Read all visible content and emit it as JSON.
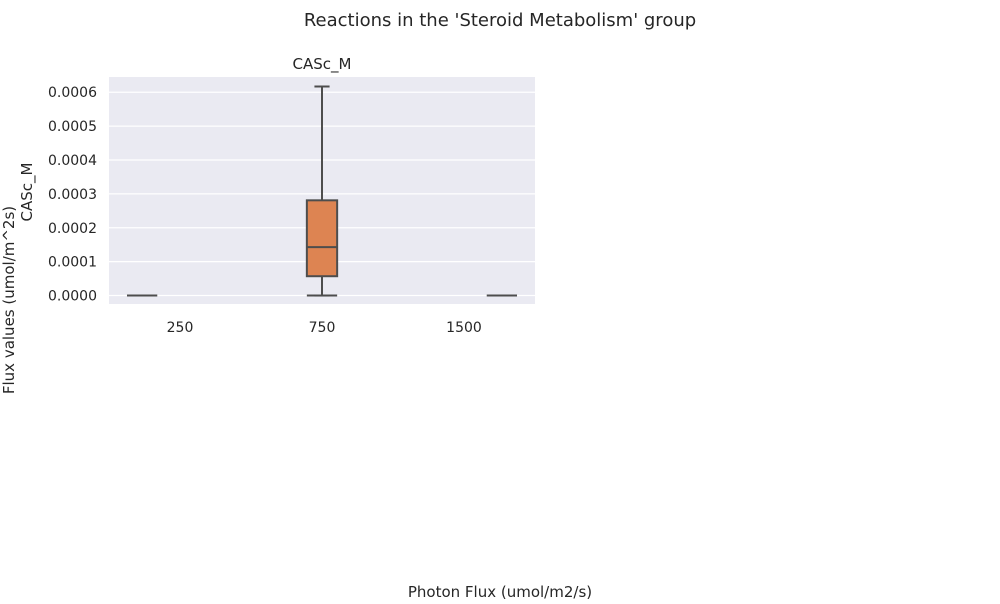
{
  "figure": {
    "suptitle": "Reactions in the 'Steroid Metabolism' group",
    "ylabel": "Flux values (umol/m^2s)",
    "xlabel": "Photon Flux (umol/m2/s)"
  },
  "chart_data": {
    "type": "box",
    "title": "CASc_M",
    "ylabel": "CASc_M",
    "xlabel": "",
    "categories": [
      "250",
      "750",
      "1500"
    ],
    "ylim": [
      -2.5e-05,
      0.000645
    ],
    "yticks": [
      0.0,
      0.0001,
      0.0002,
      0.0003,
      0.0004,
      0.0005,
      0.0006
    ],
    "ytick_labels": [
      "0.0000",
      "0.0001",
      "0.0002",
      "0.0003",
      "0.0004",
      "0.0005",
      "0.0006"
    ],
    "grid": true,
    "series": [
      {
        "color": "#c44e52",
        "boxes": [
          {
            "category": "250",
            "whisker_low": 0.0,
            "q1": 0.0,
            "median": 0.0,
            "q3": 0.0,
            "whisker_high": 0.0
          }
        ]
      },
      {
        "color": "#dd8452",
        "boxes": [
          {
            "category": "750",
            "whisker_low": 0.0,
            "q1": 0.0,
            "median": 0.0,
            "q3": 0.0,
            "whisker_high": 0.0
          },
          {
            "category": "750",
            "whisker_low": 0.0,
            "q1": 5.7e-05,
            "median": 0.000143,
            "q3": 0.000281,
            "whisker_high": 0.000617
          }
        ]
      },
      {
        "color": "#55a868",
        "boxes": [
          {
            "category": "1500",
            "whisker_low": 0.0,
            "q1": 0.0,
            "median": 0.0,
            "q3": 0.0,
            "whisker_high": 0.0
          }
        ]
      }
    ],
    "colors": {
      "plot_background": "#eaeaf2",
      "grid": "#ffffff",
      "line": "#4d4d4d"
    }
  }
}
